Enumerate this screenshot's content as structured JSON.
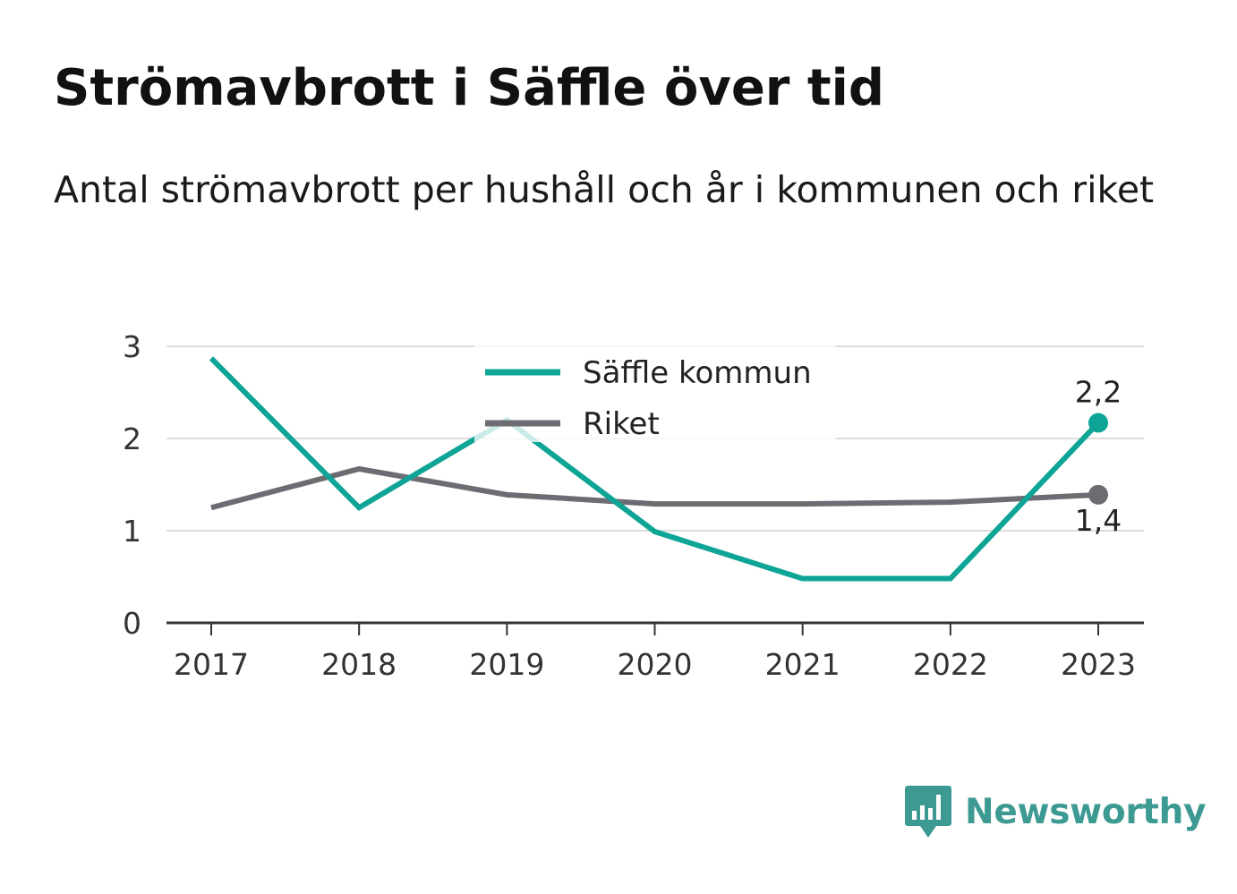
{
  "title": "Strömavbrott i Säffle över tid",
  "subtitle": "Antal strömavbrott per hushåll och år i kommunen och riket",
  "brand": {
    "name": "Newsworthy",
    "icon": "chart-bubble-icon",
    "color": "#3d9a92"
  },
  "chart_data": {
    "type": "line",
    "x": [
      "2017",
      "2018",
      "2019",
      "2020",
      "2021",
      "2022",
      "2023"
    ],
    "ylim": [
      0,
      3
    ],
    "yticks": [
      "0",
      "1",
      "2",
      "3"
    ],
    "grid": true,
    "legend": "top-center",
    "series": [
      {
        "name": "Säffle kommun",
        "color": "#0ea496",
        "values": [
          2.87,
          1.25,
          2.2,
          0.99,
          0.48,
          0.48,
          2.17
        ],
        "end_label": "2,2"
      },
      {
        "name": "Riket",
        "color": "#6d6c73",
        "values": [
          1.25,
          1.67,
          1.39,
          1.29,
          1.29,
          1.31,
          1.39
        ],
        "end_label": "1,4"
      }
    ]
  }
}
